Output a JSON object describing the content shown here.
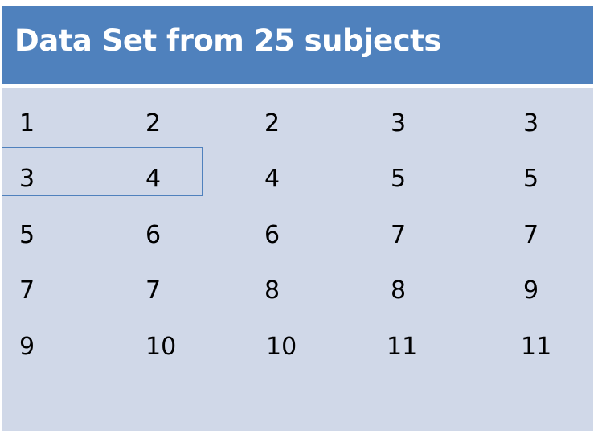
{
  "title": "Data Set from 25 subjects",
  "colors": {
    "header_background": "#4f81bd",
    "body_background": "#d0d8e8",
    "title_text": "#ffffff",
    "highlight_border": "#4f81bd"
  },
  "rows": [
    [
      "1",
      "2",
      "2",
      "3",
      "3"
    ],
    [
      "3",
      "4",
      "4",
      "5",
      "5"
    ],
    [
      "5",
      "6",
      "6",
      "7",
      "7"
    ],
    [
      "7",
      "7",
      "8",
      "8",
      "9"
    ],
    [
      "9",
      "10",
      "10",
      "11",
      "11"
    ]
  ],
  "highlight": {
    "row": 1,
    "columns": [
      0,
      1
    ]
  }
}
